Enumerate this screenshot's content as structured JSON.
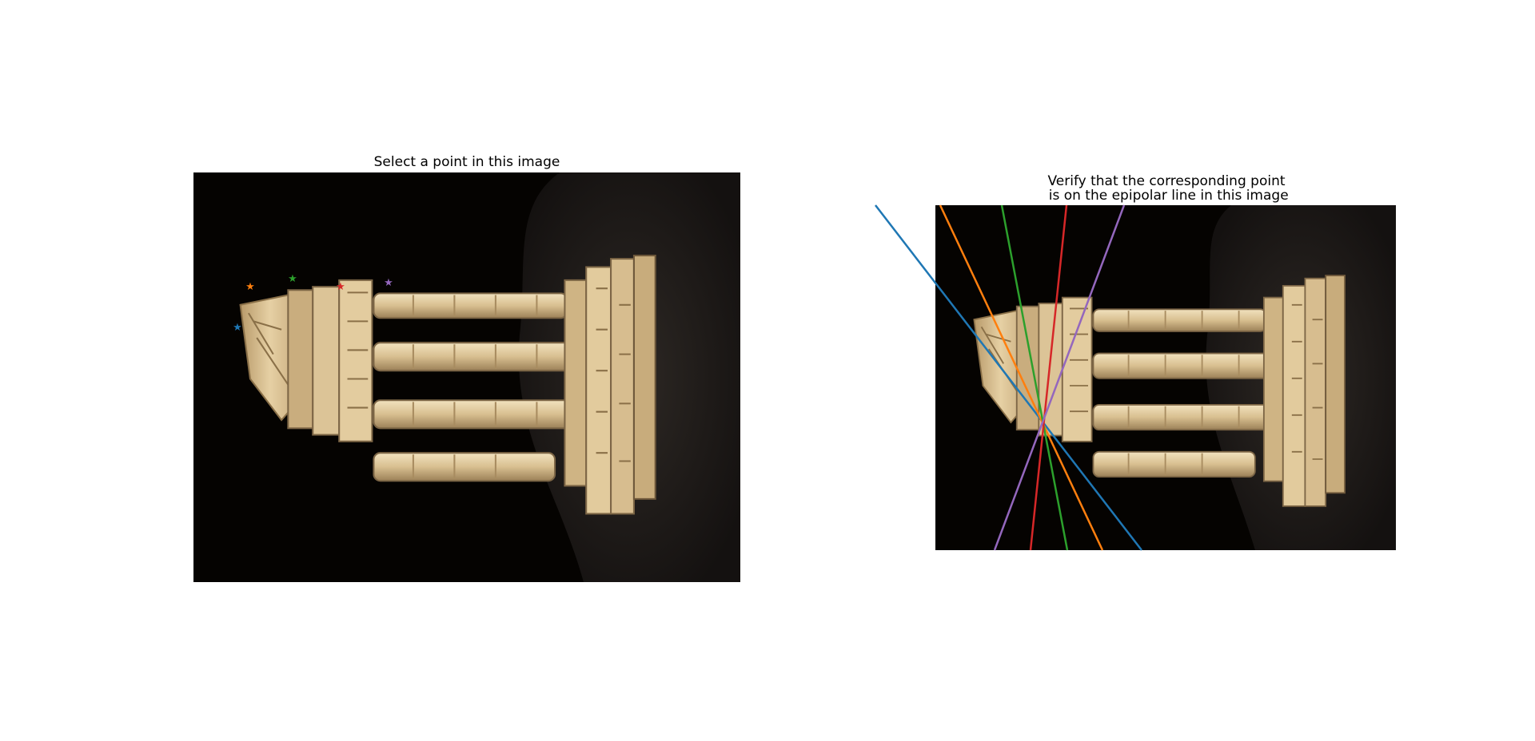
{
  "figure": {
    "left_axes": {
      "title": "Select a point in this image"
    },
    "right_axes": {
      "title_line1": "Verify that the corresponding point",
      "title_line2": "is on the epipolar line in this image"
    },
    "colors": {
      "marker_colors": [
        "#1f77b4",
        "#ff7f0e",
        "#2ca02c",
        "#d62728",
        "#9467bd"
      ],
      "image_background": "#050301",
      "cloth": "#1e1a17",
      "stone": "#d2b88a",
      "stone_light": "#f0dfb8",
      "stone_shadow": "#7d6646"
    },
    "subject": "temple-figurine-photo"
  }
}
